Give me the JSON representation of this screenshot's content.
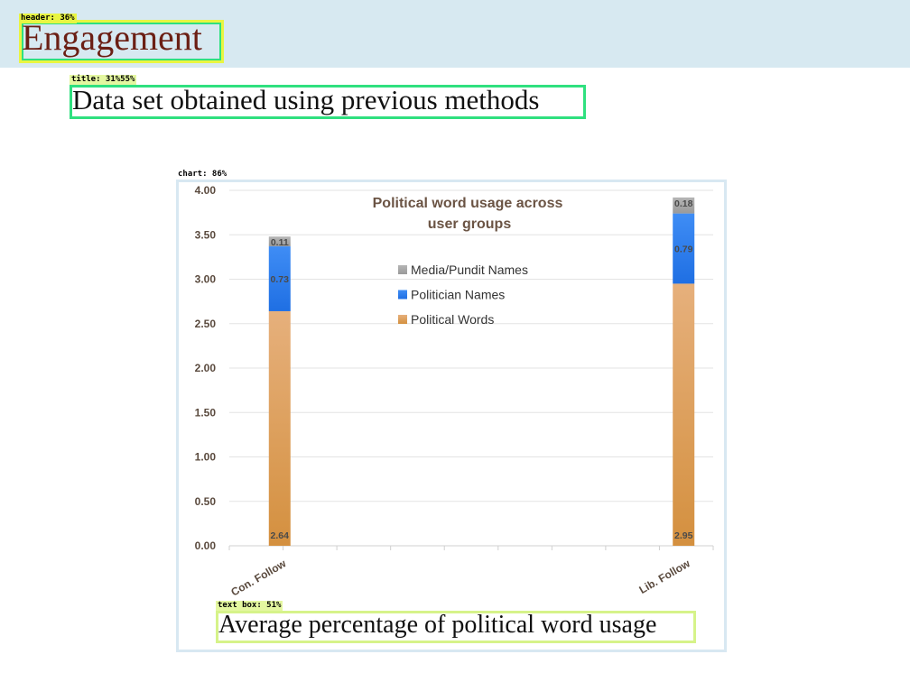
{
  "detections": {
    "header_label": "header: 36%",
    "title_label": "title: 31%55%",
    "chart_label": "chart: 86%",
    "textbox_label": "text box: 51%"
  },
  "header": {
    "text": "Engagement"
  },
  "title": {
    "text": "Data set obtained using previous methods"
  },
  "caption": {
    "text": "Average percentage of political word usage"
  },
  "colors": {
    "political_words": "#dd9e5e",
    "politician_names": "#2e7df0",
    "media_pundit_names": "#a6a6a6",
    "gridline": "#e3e3e3",
    "chart_border": "#d8e8f2"
  },
  "chart_data": {
    "type": "bar",
    "stacked": true,
    "title": "Political word usage across user groups",
    "title_lines": [
      "Political word usage across",
      "user groups"
    ],
    "categories": [
      "Con. Follow",
      "Lib. Follow"
    ],
    "series": [
      {
        "name": "Political Words",
        "values": [
          2.64,
          2.95
        ],
        "labels": [
          "2.64",
          "2.95"
        ],
        "color": "#dd9e5e"
      },
      {
        "name": "Politician Names",
        "values": [
          0.73,
          0.79
        ],
        "labels": [
          "0.73",
          "0.79"
        ],
        "color": "#2e7df0"
      },
      {
        "name": "Media/Pundit Names",
        "values": [
          0.11,
          0.18
        ],
        "labels": [
          "0.11",
          "0.18"
        ],
        "color": "#a6a6a6"
      }
    ],
    "ylim": [
      0,
      4
    ],
    "yticks": [
      "0.00",
      "0.50",
      "1.00",
      "1.50",
      "2.00",
      "2.50",
      "3.00",
      "3.50",
      "4.00"
    ],
    "grid": true,
    "legend_position": "top-center",
    "legend_order": [
      "Media/Pundit Names",
      "Politician Names",
      "Political Words"
    ]
  }
}
